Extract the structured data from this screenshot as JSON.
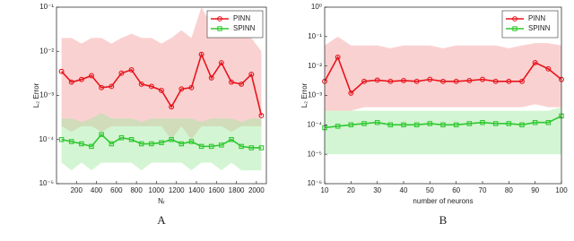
{
  "chart_data": [
    {
      "type": "line",
      "caption": "A",
      "xlabel": "Nᵣ",
      "ylabel": "L₂ Error",
      "log_y": true,
      "legend": "upper right",
      "x": [
        50,
        150,
        250,
        350,
        450,
        550,
        650,
        750,
        850,
        950,
        1050,
        1150,
        1250,
        1350,
        1450,
        1550,
        1650,
        1750,
        1850,
        1950,
        2050
      ],
      "xlim": [
        0,
        2100
      ],
      "xticks": [
        200,
        400,
        600,
        800,
        1000,
        1200,
        1400,
        1600,
        1800,
        2000
      ],
      "ylim": [
        1e-05,
        0.1
      ],
      "yticks": [
        {
          "value": 1e-05,
          "label": "10⁻⁵"
        },
        {
          "value": 0.0001,
          "label": "10⁻⁴"
        },
        {
          "value": 0.001,
          "label": "10⁻³"
        },
        {
          "value": 0.01,
          "label": "10⁻²"
        },
        {
          "value": 0.1,
          "label": "10⁻¹"
        }
      ],
      "series": [
        {
          "name": "PINN",
          "color": "#e8141c",
          "band_color": "#f39a9a",
          "marker": "circle",
          "values": [
            0.0035,
            0.002,
            0.0023,
            0.0028,
            0.0015,
            0.0016,
            0.0032,
            0.0038,
            0.0018,
            0.0016,
            0.0013,
            0.00055,
            0.0014,
            0.0015,
            0.0085,
            0.0025,
            0.0055,
            0.002,
            0.0018,
            0.003,
            0.00035
          ],
          "upper": [
            0.02,
            0.02,
            0.015,
            0.02,
            0.02,
            0.015,
            0.02,
            0.025,
            0.02,
            0.02,
            0.015,
            0.02,
            0.03,
            0.02,
            0.1,
            0.04,
            0.03,
            0.025,
            0.03,
            0.02,
            0.01
          ],
          "lower": [
            0.0002,
            0.00015,
            0.0002,
            0.0002,
            0.00015,
            0.0002,
            0.0002,
            0.0002,
            0.0002,
            0.0002,
            0.0002,
            0.0001,
            0.0002,
            0.0001,
            0.0002,
            0.0002,
            0.0002,
            0.00015,
            0.0002,
            0.0002,
            0.0002
          ]
        },
        {
          "name": "SPINN",
          "color": "#2ec82e",
          "band_color": "#9ee89e",
          "marker": "square",
          "values": [
            0.0001,
            9e-05,
            8e-05,
            7e-05,
            0.00013,
            8e-05,
            0.00011,
            0.0001,
            8e-05,
            8e-05,
            8.5e-05,
            0.0001,
            8e-05,
            9e-05,
            7e-05,
            7e-05,
            7.5e-05,
            0.0001,
            7e-05,
            6.5e-05,
            6.5e-05
          ],
          "upper": [
            0.0003,
            0.0003,
            0.00025,
            0.0003,
            0.0004,
            0.0003,
            0.0003,
            0.0003,
            0.00025,
            0.0003,
            0.0003,
            0.0003,
            0.0003,
            0.0003,
            0.00025,
            0.0003,
            0.0003,
            0.0003,
            0.00025,
            0.0003,
            0.0003
          ],
          "lower": [
            3e-05,
            2e-05,
            3e-05,
            2e-05,
            3e-05,
            3e-05,
            3e-05,
            3e-05,
            2e-05,
            3e-05,
            3e-05,
            3e-05,
            3e-05,
            2e-05,
            3e-05,
            3e-05,
            2e-05,
            3e-05,
            2e-05,
            2e-05,
            2e-05
          ]
        }
      ]
    },
    {
      "type": "line",
      "caption": "B",
      "xlabel": "number of neurons",
      "ylabel": "L₂ Error",
      "log_y": true,
      "legend": "upper right",
      "x": [
        10,
        15,
        20,
        25,
        30,
        35,
        40,
        45,
        50,
        55,
        60,
        65,
        70,
        75,
        80,
        85,
        90,
        95,
        100
      ],
      "xlim": [
        10,
        100
      ],
      "xticks": [
        10,
        20,
        30,
        40,
        50,
        60,
        70,
        80,
        90,
        100
      ],
      "ylim": [
        1e-06,
        1
      ],
      "yticks": [
        {
          "value": 1e-06,
          "label": "10⁻⁶"
        },
        {
          "value": 1e-05,
          "label": "10⁻⁵"
        },
        {
          "value": 0.0001,
          "label": "10⁻⁴"
        },
        {
          "value": 0.001,
          "label": "10⁻³"
        },
        {
          "value": 0.01,
          "label": "10⁻²"
        },
        {
          "value": 0.1,
          "label": "10⁻¹"
        },
        {
          "value": 1,
          "label": "10⁰"
        }
      ],
      "series": [
        {
          "name": "PINN",
          "color": "#e8141c",
          "band_color": "#f39a9a",
          "marker": "circle",
          "values": [
            0.003,
            0.02,
            0.0012,
            0.003,
            0.0033,
            0.003,
            0.0032,
            0.003,
            0.0035,
            0.003,
            0.003,
            0.0032,
            0.0035,
            0.003,
            0.003,
            0.003,
            0.013,
            0.008,
            0.0035
          ],
          "upper": [
            0.05,
            0.1,
            0.05,
            0.05,
            0.05,
            0.04,
            0.05,
            0.05,
            0.05,
            0.04,
            0.05,
            0.05,
            0.05,
            0.05,
            0.04,
            0.05,
            0.06,
            0.06,
            0.05
          ],
          "lower": [
            0.0003,
            0.0003,
            0.0003,
            0.0004,
            0.0004,
            0.0004,
            0.0004,
            0.0004,
            0.0004,
            0.0004,
            0.0004,
            0.0004,
            0.0004,
            0.0004,
            0.0004,
            0.0004,
            0.0005,
            0.0004,
            0.0004
          ]
        },
        {
          "name": "SPINN",
          "color": "#2ec82e",
          "band_color": "#9ee89e",
          "marker": "square",
          "values": [
            8e-05,
            9e-05,
            0.0001,
            0.00011,
            0.00012,
            0.0001,
            0.0001,
            0.0001,
            0.00011,
            0.0001,
            0.0001,
            0.00011,
            0.00012,
            0.00011,
            0.00011,
            0.0001,
            0.00012,
            0.00012,
            0.0002
          ],
          "upper": [
            0.0003,
            0.0003,
            0.0003,
            0.0003,
            0.0003,
            0.0003,
            0.0003,
            0.0003,
            0.0003,
            0.0003,
            0.0003,
            0.0003,
            0.0003,
            0.0003,
            0.0003,
            0.0003,
            0.0003,
            0.0003,
            0.0004
          ],
          "lower": [
            1e-05,
            1e-05,
            1e-05,
            1e-05,
            1e-05,
            1e-05,
            1e-05,
            1e-05,
            1e-05,
            1e-05,
            1e-05,
            1e-05,
            1e-05,
            1e-05,
            1e-05,
            1e-05,
            1e-05,
            1e-05,
            1e-05
          ]
        }
      ]
    }
  ]
}
